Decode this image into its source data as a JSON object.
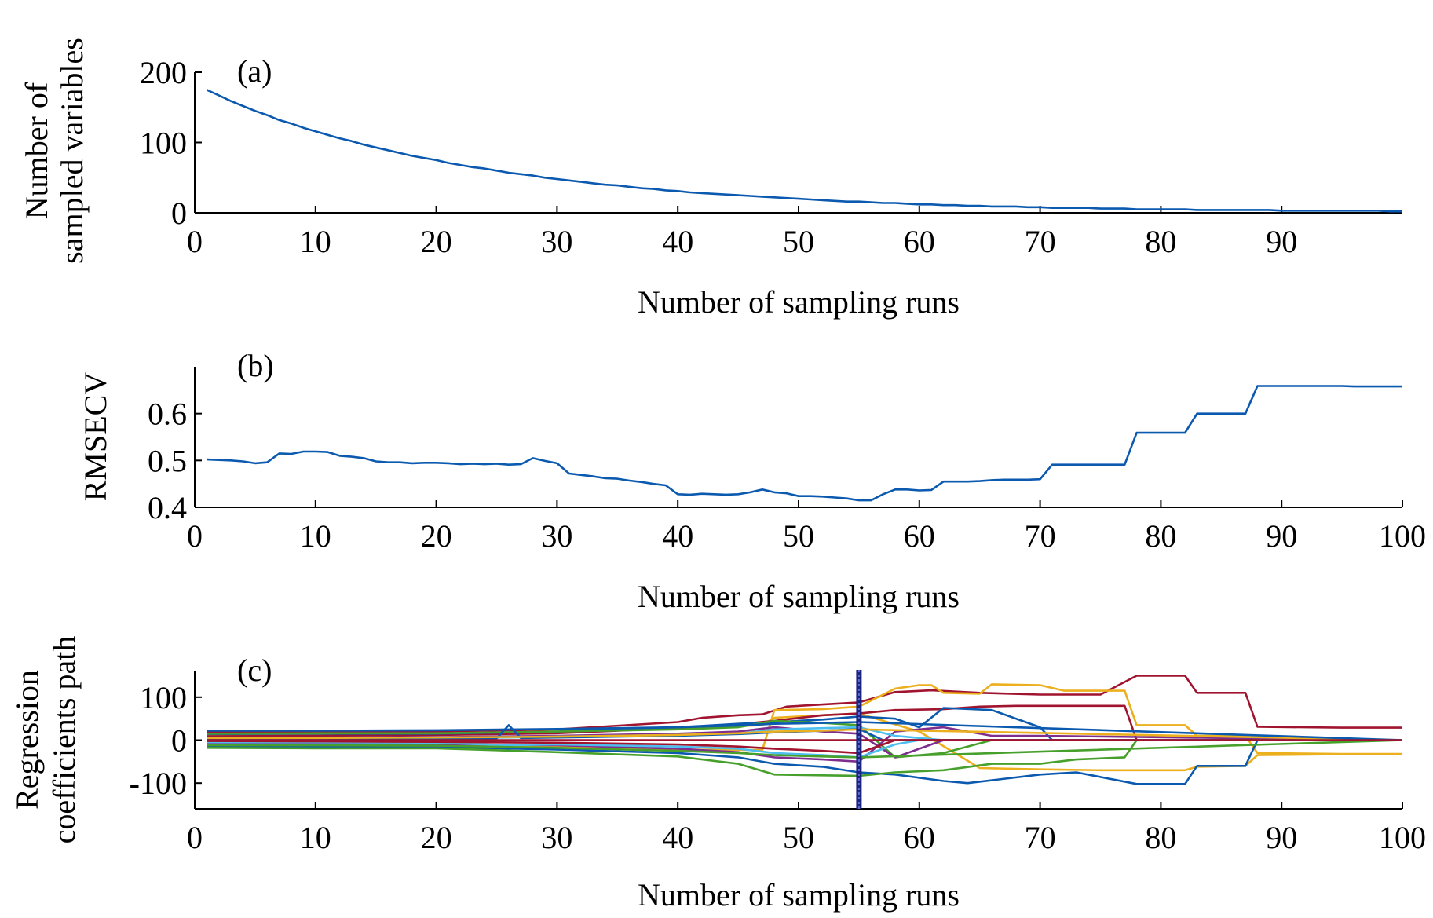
{
  "colors": {
    "blue": "#0b5aaf",
    "orange": "#ecb01f",
    "red": "#a0142f",
    "green": "#48a02c",
    "purple": "#7e2f8e",
    "cyan": "#4dbeee",
    "marker": "#1a237e"
  },
  "chart_data": [
    {
      "type": "line",
      "panel_label": "(a)",
      "xlabel": "Number of sampling runs",
      "ylabel": [
        "Number of",
        "sampled variables"
      ],
      "xlim": [
        0,
        100
      ],
      "ylim": [
        0,
        200
      ],
      "xticks": [
        0,
        10,
        20,
        30,
        40,
        50,
        60,
        70,
        80,
        90
      ],
      "yticks": [
        0,
        100,
        200
      ],
      "grid": false,
      "series": [
        {
          "color": "blue",
          "x": [
            1,
            2,
            3,
            4,
            5,
            6,
            7,
            8,
            9,
            10,
            11,
            12,
            13,
            14,
            15,
            16,
            17,
            18,
            19,
            20,
            21,
            22,
            23,
            24,
            25,
            26,
            27,
            28,
            29,
            30,
            31,
            32,
            33,
            34,
            35,
            36,
            37,
            38,
            39,
            40,
            41,
            42,
            43,
            44,
            45,
            46,
            47,
            48,
            49,
            50,
            51,
            52,
            53,
            54,
            55,
            56,
            57,
            58,
            59,
            60,
            61,
            62,
            63,
            64,
            65,
            66,
            67,
            68,
            69,
            70,
            71,
            72,
            73,
            74,
            75,
            76,
            77,
            78,
            79,
            80,
            81,
            82,
            83,
            84,
            85,
            86,
            87,
            88,
            89,
            90,
            91,
            92,
            93,
            94,
            95,
            96,
            97,
            98,
            99,
            100
          ],
          "y": [
            175,
            167,
            159,
            152,
            145,
            139,
            132,
            127,
            121,
            116,
            111,
            106,
            102,
            97,
            93,
            89,
            85,
            81,
            78,
            75,
            71,
            68,
            65,
            63,
            60,
            57,
            55,
            53,
            50,
            48,
            46,
            44,
            42,
            40,
            39,
            37,
            35,
            34,
            32,
            31,
            29,
            28,
            27,
            26,
            25,
            24,
            23,
            22,
            21,
            20,
            19,
            18,
            17,
            16,
            16,
            15,
            14,
            14,
            13,
            12,
            12,
            11,
            11,
            10,
            10,
            9,
            9,
            9,
            8,
            8,
            7,
            7,
            7,
            7,
            6,
            6,
            6,
            5,
            5,
            5,
            5,
            5,
            4,
            4,
            4,
            4,
            4,
            4,
            4,
            3,
            3,
            3,
            3,
            3,
            3,
            3,
            3,
            3,
            2,
            2
          ]
        }
      ]
    },
    {
      "type": "line",
      "panel_label": "(b)",
      "xlabel": "Number of sampling runs",
      "ylabel": "RMSECV",
      "xlim": [
        0,
        100
      ],
      "ylim": [
        0.4,
        0.7
      ],
      "xticks": [
        0,
        10,
        20,
        30,
        40,
        50,
        60,
        70,
        80,
        90,
        100
      ],
      "yticks": [
        0.4,
        0.5,
        0.6
      ],
      "grid": false,
      "series": [
        {
          "color": "blue",
          "x": [
            1,
            2,
            3,
            4,
            5,
            6,
            7,
            8,
            9,
            10,
            11,
            12,
            13,
            14,
            15,
            16,
            17,
            18,
            19,
            20,
            21,
            22,
            23,
            24,
            25,
            26,
            27,
            28,
            29,
            30,
            31,
            32,
            33,
            34,
            35,
            36,
            37,
            38,
            39,
            40,
            41,
            42,
            43,
            44,
            45,
            46,
            47,
            48,
            49,
            50,
            51,
            52,
            53,
            54,
            55,
            56,
            57,
            58,
            59,
            60,
            61,
            62,
            63,
            64,
            65,
            66,
            67,
            68,
            69,
            70,
            71,
            72,
            73,
            74,
            75,
            76,
            77,
            78,
            79,
            80,
            81,
            82,
            83,
            84,
            85,
            86,
            87,
            88,
            89,
            90,
            91,
            92,
            93,
            94,
            95,
            96,
            97,
            98,
            99,
            100
          ],
          "y": [
            0.502,
            0.501,
            0.5,
            0.498,
            0.494,
            0.496,
            0.515,
            0.514,
            0.519,
            0.519,
            0.518,
            0.51,
            0.508,
            0.505,
            0.498,
            0.496,
            0.496,
            0.494,
            0.495,
            0.495,
            0.494,
            0.492,
            0.493,
            0.492,
            0.493,
            0.491,
            0.492,
            0.505,
            0.499,
            0.494,
            0.472,
            0.469,
            0.466,
            0.462,
            0.461,
            0.457,
            0.454,
            0.45,
            0.447,
            0.428,
            0.427,
            0.429,
            0.428,
            0.427,
            0.428,
            0.432,
            0.438,
            0.432,
            0.43,
            0.424,
            0.424,
            0.423,
            0.421,
            0.419,
            0.415,
            0.415,
            0.428,
            0.438,
            0.438,
            0.436,
            0.437,
            0.455,
            0.455,
            0.455,
            0.456,
            0.458,
            0.459,
            0.459,
            0.459,
            0.46,
            0.491,
            0.491,
            0.491,
            0.491,
            0.491,
            0.491,
            0.491,
            0.559,
            0.559,
            0.559,
            0.559,
            0.559,
            0.6,
            0.6,
            0.6,
            0.6,
            0.6,
            0.659,
            0.659,
            0.659,
            0.659,
            0.659,
            0.659,
            0.659,
            0.659,
            0.658,
            0.658,
            0.658,
            0.658,
            0.658
          ]
        }
      ]
    },
    {
      "type": "line",
      "panel_label": "(c)",
      "xlabel": "Number of sampling runs",
      "ylabel": [
        "Regression",
        "coefficients path"
      ],
      "xlim": [
        0,
        100
      ],
      "ylim": [
        -160,
        160
      ],
      "xticks": [
        0,
        10,
        20,
        30,
        40,
        50,
        60,
        70,
        80,
        90,
        100
      ],
      "yticks": [
        -100,
        0,
        100
      ],
      "grid": false,
      "marker_line": {
        "x": 55,
        "color": "marker"
      },
      "series": [
        {
          "color": "red",
          "x": [
            1,
            10,
            20,
            30,
            40,
            42,
            45,
            47,
            49,
            52,
            55,
            58,
            61,
            65,
            70,
            75,
            78,
            82,
            83,
            87,
            88,
            95,
            100
          ],
          "y": [
            18,
            19,
            20,
            25,
            42,
            52,
            58,
            60,
            78,
            83,
            88,
            112,
            116,
            110,
            106,
            106,
            150,
            150,
            110,
            110,
            31,
            29,
            29
          ]
        },
        {
          "color": "orange",
          "x": [
            1,
            10,
            20,
            30,
            40,
            47,
            48,
            52,
            55,
            58,
            60,
            61,
            62,
            65,
            66,
            70,
            72,
            77,
            78,
            82,
            83,
            87,
            88,
            95,
            100
          ],
          "y": [
            -10,
            -12,
            -12,
            -15,
            -22,
            -23,
            70,
            72,
            78,
            120,
            128,
            128,
            110,
            108,
            130,
            128,
            115,
            115,
            35,
            35,
            10,
            10,
            -30,
            -32,
            -32
          ]
        },
        {
          "color": "orange",
          "x": [
            1,
            10,
            20,
            30,
            40,
            47,
            48,
            52,
            55,
            57,
            60,
            65,
            70,
            75,
            78,
            82,
            83,
            87,
            88,
            95,
            100
          ],
          "y": [
            12,
            13,
            14,
            18,
            28,
            35,
            52,
            58,
            62,
            45,
            20,
            -65,
            -68,
            -70,
            -70,
            -70,
            -62,
            -60,
            -35,
            -33,
            -33
          ]
        },
        {
          "color": "red",
          "x": [
            1,
            10,
            20,
            30,
            40,
            45,
            48,
            52,
            55,
            58,
            62,
            65,
            68,
            72,
            77,
            78,
            100
          ],
          "y": [
            9,
            10,
            12,
            16,
            28,
            37,
            45,
            58,
            62,
            70,
            72,
            78,
            80,
            80,
            80,
            0,
            0
          ]
        },
        {
          "color": "blue",
          "x": [
            1,
            10,
            20,
            30,
            40,
            45,
            48,
            52,
            55,
            58,
            62,
            64,
            70,
            73,
            78,
            82,
            83,
            87,
            88,
            95,
            100
          ],
          "y": [
            -15,
            -16,
            -16,
            -22,
            -30,
            -40,
            -55,
            -62,
            -75,
            -80,
            -95,
            -100,
            -80,
            -75,
            -102,
            -102,
            -60,
            -60,
            0,
            0,
            0
          ]
        },
        {
          "color": "blue",
          "x": [
            1,
            10,
            20,
            30,
            40,
            45,
            48,
            52,
            55,
            58,
            60,
            62,
            66,
            70,
            71,
            100
          ],
          "y": [
            14,
            15,
            15,
            20,
            30,
            38,
            42,
            48,
            55,
            50,
            30,
            75,
            70,
            30,
            0,
            0
          ]
        },
        {
          "color": "green",
          "x": [
            1,
            10,
            20,
            30,
            40,
            45,
            48,
            52,
            55,
            58,
            62,
            66,
            70,
            73,
            77,
            78,
            100
          ],
          "y": [
            -18,
            -19,
            -19,
            -28,
            -38,
            -55,
            -80,
            -82,
            -83,
            -75,
            -70,
            -55,
            -55,
            -45,
            -40,
            0,
            0
          ]
        },
        {
          "color": "green",
          "x": [
            1,
            10,
            20,
            30,
            40,
            45,
            48,
            52,
            55,
            58,
            62,
            66,
            70,
            100
          ],
          "y": [
            15,
            16,
            16,
            20,
            25,
            30,
            45,
            40,
            35,
            -40,
            -30,
            0,
            0,
            0
          ]
        },
        {
          "color": "purple",
          "x": [
            1,
            10,
            20,
            30,
            40,
            45,
            48,
            52,
            55,
            58,
            62,
            66,
            70,
            100
          ],
          "y": [
            -8,
            -8,
            -9,
            -12,
            -20,
            -28,
            -40,
            -45,
            -50,
            20,
            30,
            10,
            10,
            0
          ]
        },
        {
          "color": "purple",
          "x": [
            1,
            10,
            20,
            30,
            40,
            45,
            48,
            52,
            55,
            58,
            62,
            100
          ],
          "y": [
            6,
            6,
            7,
            10,
            15,
            20,
            30,
            20,
            15,
            -40,
            0,
            0
          ]
        },
        {
          "color": "cyan",
          "x": [
            1,
            10,
            20,
            26,
            30,
            40,
            45,
            48,
            52,
            55,
            58,
            60,
            62,
            100
          ],
          "y": [
            3,
            4,
            5,
            6,
            8,
            12,
            15,
            25,
            28,
            30,
            10,
            5,
            0,
            0
          ]
        },
        {
          "color": "cyan",
          "x": [
            1,
            10,
            20,
            26,
            30,
            40,
            45,
            48,
            52,
            55,
            58,
            60,
            100
          ],
          "y": [
            -5,
            -5,
            -6,
            -12,
            -10,
            -15,
            -20,
            -30,
            -35,
            -40,
            -10,
            0,
            0
          ]
        },
        {
          "color": "blue",
          "x": [
            1,
            10,
            20,
            25,
            26,
            27,
            30,
            40,
            45,
            48,
            52,
            55,
            57,
            100
          ],
          "y": [
            2,
            3,
            3,
            4,
            35,
            5,
            6,
            10,
            14,
            18,
            22,
            26,
            0,
            0
          ]
        },
        {
          "color": "red",
          "x": [
            1,
            10,
            20,
            30,
            40,
            45,
            48,
            52,
            55,
            58,
            100
          ],
          "y": [
            -2,
            -3,
            -4,
            -6,
            -10,
            -15,
            -20,
            -25,
            -30,
            0,
            0
          ]
        },
        {
          "color": "orange",
          "x": [
            1,
            10,
            20,
            30,
            40,
            45,
            48,
            52,
            55,
            100
          ],
          "y": [
            5,
            5,
            6,
            8,
            12,
            16,
            20,
            22,
            25,
            0
          ]
        },
        {
          "color": "green",
          "x": [
            1,
            10,
            20,
            30,
            40,
            45,
            48,
            52,
            55,
            100
          ],
          "y": [
            -12,
            -12,
            -13,
            -18,
            -25,
            -30,
            -35,
            -38,
            -40,
            0
          ]
        },
        {
          "color": "blue",
          "x": [
            1,
            10,
            20,
            30,
            40,
            45,
            48,
            52,
            55,
            100
          ],
          "y": [
            22,
            22,
            23,
            26,
            30,
            34,
            38,
            40,
            42,
            0
          ]
        },
        {
          "color": "red",
          "x": [
            1,
            100
          ],
          "y": [
            0,
            0
          ]
        }
      ]
    }
  ]
}
